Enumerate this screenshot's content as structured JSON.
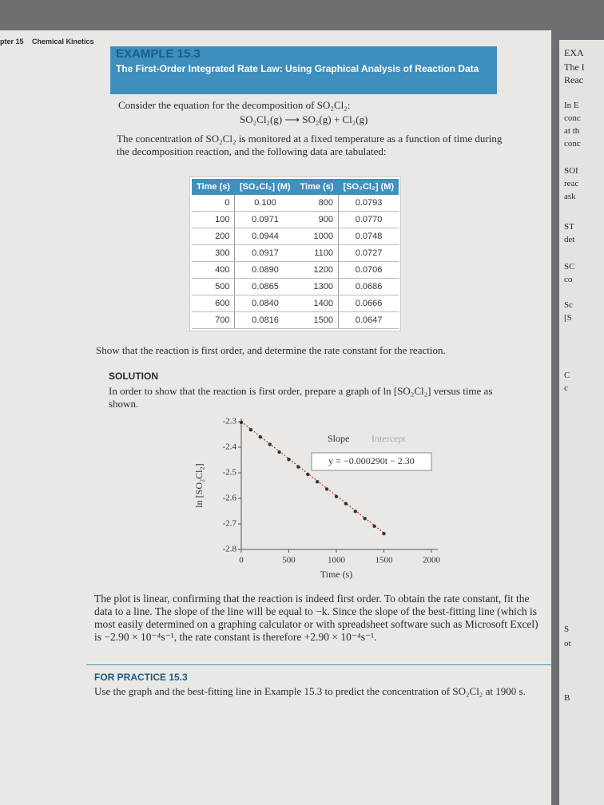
{
  "header": {
    "chapter": "pter 15",
    "section": "Chemical Kinetics"
  },
  "example": {
    "label": "EXAMPLE 15.3",
    "title": "The First-Order Integrated Rate Law: Using Graphical Analysis of Reaction Data"
  },
  "intro": "Consider the equation for the decomposition of SO₂Cl₂:",
  "equation": "SO₂Cl₂(g) ⟶ SO₂(g) + Cl₂(g)",
  "paragraph": "The concentration of SO₂Cl₂ is monitored at a fixed temperature as a function of time during the decomposition reaction, and the following data are tabulated:",
  "table": {
    "header": [
      "Time (s)",
      "[SO₂Cl₂] (M)",
      "Time (s)",
      "[SO₂Cl₂] (M)"
    ],
    "rows": [
      [
        "0",
        "0.100",
        "800",
        "0.0793"
      ],
      [
        "100",
        "0.0971",
        "900",
        "0.0770"
      ],
      [
        "200",
        "0.0944",
        "1000",
        "0.0748"
      ],
      [
        "300",
        "0.0917",
        "1100",
        "0.0727"
      ],
      [
        "400",
        "0.0890",
        "1200",
        "0.0706"
      ],
      [
        "500",
        "0.0865",
        "1300",
        "0.0686"
      ],
      [
        "600",
        "0.0840",
        "1400",
        "0.0666"
      ],
      [
        "700",
        "0.0816",
        "1500",
        "0.0647"
      ]
    ]
  },
  "question": "Show that the reaction is first order, and determine the rate constant for the reaction.",
  "solution": {
    "heading": "SOLUTION",
    "text": "In order to show that the reaction is first order, prepare a graph of ln [SO₂Cl₂] versus time as shown."
  },
  "chart_data": {
    "type": "scatter",
    "y_label": "ln [SO₂Cl₂]",
    "x_label": "Time (s)",
    "x": [
      0,
      100,
      200,
      300,
      400,
      500,
      600,
      700,
      800,
      900,
      1000,
      1100,
      1200,
      1300,
      1400,
      1500
    ],
    "series": [
      {
        "name": "ln [SO₂Cl₂]",
        "color": "#333333",
        "values": [
          -2.303,
          -2.332,
          -2.36,
          -2.389,
          -2.419,
          -2.448,
          -2.477,
          -2.506,
          -2.535,
          -2.564,
          -2.593,
          -2.621,
          -2.651,
          -2.679,
          -2.709,
          -2.738
        ]
      }
    ],
    "fit": {
      "color": "#c0392b",
      "x": [
        0,
        1500
      ],
      "values": [
        -2.3,
        -2.735
      ]
    },
    "legend": {
      "slope": "Slope",
      "intercept": "Intercept",
      "equation": "y = −0.000290t − 2.30"
    },
    "xlim": [
      0,
      2000
    ],
    "ylim": [
      -2.8,
      -2.3
    ],
    "xticks": [
      0,
      500,
      1000,
      1500,
      2000
    ],
    "yticks": [
      -2.3,
      -2.4,
      -2.5,
      -2.6,
      -2.7,
      -2.8
    ]
  },
  "conclusion": "The plot is linear, confirming that the reaction is indeed first order. To obtain the rate constant, fit the data to a line. The slope of the line will be equal to −k. Since the slope of the best-fitting line (which is most easily determined on a graphing calculator or with spreadsheet software such as Microsoft Excel) is −2.90 × 10⁻⁴s⁻¹, the rate constant is therefore +2.90 × 10⁻⁴s⁻¹.",
  "practice": {
    "heading": "FOR PRACTICE 15.3",
    "text": "Use the graph and the best-fitting line in Example 15.3 to predict the concentration of SO₂Cl₂ at 1900 s."
  },
  "next_page": [
    "EXA",
    "The I",
    "Reac",
    "In E",
    "conc",
    "at th",
    "conc",
    "SOI",
    "reac",
    "ask",
    "ST",
    "det",
    "SC",
    "co",
    "Sc",
    "[S",
    "C",
    "c",
    "S",
    "ot",
    "B"
  ]
}
